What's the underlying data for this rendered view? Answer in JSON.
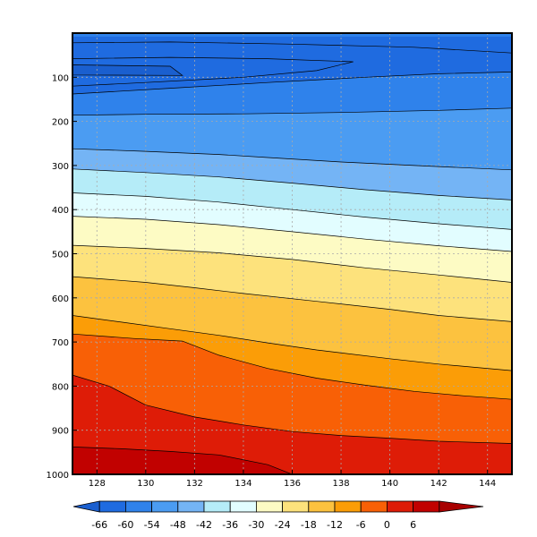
{
  "chart_data": {
    "type": "contour",
    "x_ticks": [
      128,
      130,
      132,
      134,
      136,
      138,
      140,
      142,
      144
    ],
    "xlim": [
      127,
      145
    ],
    "y_ticks": [
      100,
      200,
      300,
      400,
      500,
      600,
      700,
      800,
      900,
      1000
    ],
    "ylim": [
      0,
      1000
    ],
    "y_inverted": true,
    "grid": "dashed",
    "contour_levels": [
      -66,
      -60,
      -54,
      -48,
      -42,
      -36,
      -30,
      -24,
      -18,
      -12,
      -6,
      0,
      6
    ],
    "fill_colors": [
      "#1a5fcf",
      "#1f6be0",
      "#2f82eb",
      "#4b9cf2",
      "#74b4f5",
      "#b5ecf8",
      "#e2fdff",
      "#fdfbc4",
      "#fde27c",
      "#fcc23f",
      "#fb9d07",
      "#f86006",
      "#de1c07",
      "#c10100",
      "#a80000"
    ],
    "contours": [
      {
        "level": -66,
        "y": [
          [
            127,
            95
          ],
          [
            131.5,
            96
          ],
          [
            131,
            75
          ],
          [
            127,
            72
          ]
        ]
      },
      {
        "level": -60,
        "y": [
          [
            127,
            120
          ],
          [
            130,
            112
          ],
          [
            134,
            100
          ],
          [
            137,
            85
          ],
          [
            138.5,
            65
          ],
          [
            135,
            58
          ],
          [
            131,
            55
          ],
          [
            127,
            58
          ]
        ]
      },
      {
        "level": -54,
        "y": [
          [
            127,
            138
          ],
          [
            131,
            125
          ],
          [
            135,
            112
          ],
          [
            139,
            100
          ],
          [
            142,
            92
          ],
          [
            145,
            88
          ]
        ]
      },
      {
        "level": -54,
        "y": [
          [
            127,
            22
          ],
          [
            131,
            20
          ],
          [
            136,
            25
          ],
          [
            141,
            32
          ],
          [
            145,
            45
          ]
        ]
      },
      {
        "level": -48,
        "y": [
          [
            127,
            186
          ],
          [
            130,
            184
          ],
          [
            134,
            183
          ],
          [
            138,
            180
          ],
          [
            142,
            175
          ],
          [
            145,
            170
          ]
        ]
      },
      {
        "level": -42,
        "y": [
          [
            127,
            262
          ],
          [
            130,
            268
          ],
          [
            133,
            275
          ],
          [
            135,
            282
          ],
          [
            138,
            292
          ],
          [
            141,
            300
          ],
          [
            145,
            310
          ]
        ]
      },
      {
        "level": -36,
        "y": [
          [
            127,
            308
          ],
          [
            130,
            316
          ],
          [
            133,
            326
          ],
          [
            136,
            340
          ],
          [
            139,
            355
          ],
          [
            142,
            368
          ],
          [
            145,
            378
          ]
        ]
      },
      {
        "level": -30,
        "y": [
          [
            127,
            362
          ],
          [
            130,
            370
          ],
          [
            133,
            383
          ],
          [
            136,
            400
          ],
          [
            139,
            417
          ],
          [
            142,
            432
          ],
          [
            145,
            445
          ]
        ]
      },
      {
        "level": -24,
        "y": [
          [
            127,
            415
          ],
          [
            130,
            422
          ],
          [
            133,
            434
          ],
          [
            136,
            450
          ],
          [
            139,
            467
          ],
          [
            142,
            482
          ],
          [
            145,
            495
          ]
        ]
      },
      {
        "level": -18,
        "y": [
          [
            127,
            481
          ],
          [
            130,
            488
          ],
          [
            133,
            498
          ],
          [
            136,
            513
          ],
          [
            139,
            532
          ],
          [
            142,
            548
          ],
          [
            145,
            565
          ]
        ]
      },
      {
        "level": -12,
        "y": [
          [
            127,
            552
          ],
          [
            130,
            565
          ],
          [
            132,
            577
          ],
          [
            134,
            590
          ],
          [
            137,
            608
          ],
          [
            140,
            626
          ],
          [
            142,
            640
          ],
          [
            145,
            654
          ]
        ]
      },
      {
        "level": -6,
        "y": [
          [
            127,
            640
          ],
          [
            129,
            655
          ],
          [
            131,
            670
          ],
          [
            133,
            685
          ],
          [
            135,
            702
          ],
          [
            137,
            718
          ],
          [
            140,
            738
          ],
          [
            142,
            750
          ],
          [
            145,
            765
          ]
        ]
      },
      {
        "level": 0,
        "y": [
          [
            127,
            682
          ],
          [
            129.5,
            692
          ],
          [
            131.5,
            698
          ],
          [
            133,
            730
          ],
          [
            135,
            760
          ],
          [
            137,
            782
          ],
          [
            139,
            798
          ],
          [
            141,
            812
          ],
          [
            143,
            822
          ],
          [
            145,
            830
          ]
        ]
      },
      {
        "level": 6,
        "y": [
          [
            127,
            775
          ],
          [
            128.5,
            800
          ],
          [
            130,
            843
          ],
          [
            132,
            870
          ],
          [
            134,
            888
          ],
          [
            136,
            903
          ],
          [
            138,
            912
          ],
          [
            140,
            918
          ],
          [
            142,
            925
          ],
          [
            145,
            930
          ]
        ]
      },
      {
        "level": 6,
        "y": [
          [
            127,
            938
          ],
          [
            129,
            942
          ],
          [
            131,
            948
          ],
          [
            133,
            956
          ],
          [
            135,
            978
          ],
          [
            136,
            1000
          ]
        ]
      }
    ],
    "colorbar": {
      "labels": [
        "-66",
        "-60",
        "-54",
        "-48",
        "-42",
        "-36",
        "-30",
        "-24",
        "-18",
        "-12",
        "-6",
        "0",
        "6"
      ],
      "colors": [
        "#1a5fcf",
        "#1f6be0",
        "#2f82eb",
        "#4b9cf2",
        "#74b4f5",
        "#b5ecf8",
        "#e2fdff",
        "#fdfbc4",
        "#fde27c",
        "#fcc23f",
        "#fb9d07",
        "#f86006",
        "#de1c07",
        "#c10100",
        "#a80000"
      ]
    }
  }
}
